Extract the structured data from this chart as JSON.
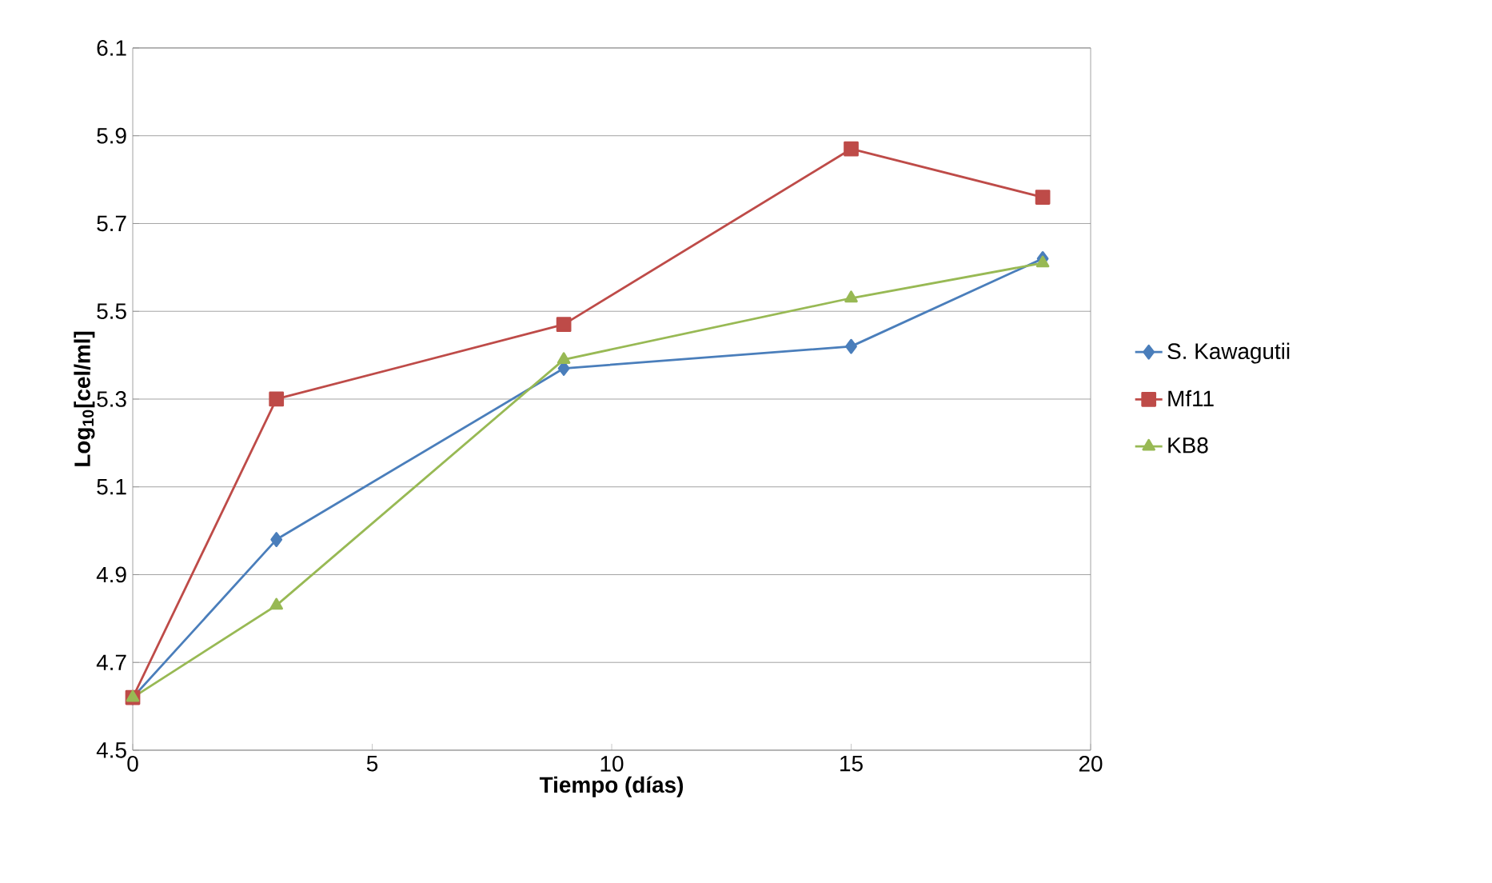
{
  "chart_data": {
    "type": "line",
    "xlabel": "**Tiempo (días)**",
    "ylabel": "**Log$_{10}$[cel/ml]**",
    "xlim": [
      0,
      20
    ],
    "xticks": [
      0,
      5,
      10,
      15,
      20
    ],
    "ylim": [
      4.5,
      6.1
    ],
    "yticks": [
      4.5,
      4.7,
      4.9,
      5.1,
      5.3,
      5.5,
      5.7,
      5.9,
      6.1
    ],
    "grid": "y",
    "legend": "right",
    "line_style": "solid",
    "series": [
      {
        "name": "S. Kawagutii",
        "color": "#4a7ebb",
        "marker": "diamond",
        "x": [
          0,
          3,
          9,
          15,
          19
        ],
        "values": [
          4.62,
          4.98,
          5.37,
          5.42,
          5.62
        ]
      },
      {
        "name": "Mf11",
        "color": "#be4b48",
        "marker": "square",
        "x": [
          0,
          3,
          9,
          15,
          19
        ],
        "values": [
          4.62,
          5.3,
          5.47,
          5.87,
          5.76
        ]
      },
      {
        "name": "KB8",
        "color": "#98b954",
        "marker": "triangle",
        "x": [
          0,
          3,
          9,
          15,
          19
        ],
        "values": [
          4.62,
          4.83,
          5.39,
          5.53,
          5.61
        ]
      }
    ]
  }
}
